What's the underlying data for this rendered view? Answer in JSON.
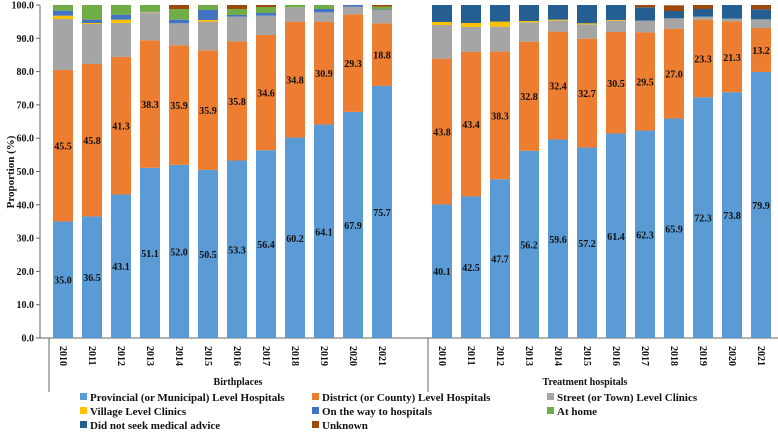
{
  "chart_data": {
    "type": "bar",
    "stacked": true,
    "ylabel": "Proportion (%)",
    "ylim": [
      0,
      100
    ],
    "yticks": [
      "0.0",
      "10.0",
      "20.0",
      "30.0",
      "40.0",
      "50.0",
      "60.0",
      "70.0",
      "80.0",
      "90.0",
      "100.0"
    ],
    "grid": false,
    "legend_position": "bottom",
    "categories": [
      "2010",
      "2011",
      "2012",
      "2013",
      "2014",
      "2015",
      "2016",
      "2017",
      "2018",
      "2019",
      "2020",
      "2021"
    ],
    "series_meta": [
      {
        "name": "Provincial (or Municipal) Level Hospitals",
        "color": "#5b9bd5"
      },
      {
        "name": "District (or County) Level Hospitals",
        "color": "#ed7d31"
      },
      {
        "name": "Street (or Town) Level Clinics",
        "color": "#a5a5a5"
      },
      {
        "name": "Village Level Clinics",
        "color": "#ffc000"
      },
      {
        "name": "On the way to hospitals",
        "color": "#4472c4"
      },
      {
        "name": "At home",
        "color": "#70ad47"
      },
      {
        "name": "Did not seek medical advice",
        "color": "#255e91"
      },
      {
        "name": "Unknown",
        "color": "#9e480e"
      }
    ],
    "groups": [
      {
        "label": "Birthplaces",
        "series": [
          {
            "name": "Provincial (or Municipal) Level Hospitals",
            "values": [
              35.0,
              36.5,
              43.1,
              51.1,
              52.0,
              50.5,
              53.3,
              56.4,
              60.2,
              64.1,
              67.9,
              75.7
            ]
          },
          {
            "name": "District (or County) Level Hospitals",
            "values": [
              45.5,
              45.8,
              41.3,
              38.3,
              35.9,
              35.9,
              35.8,
              34.6,
              34.8,
              30.9,
              29.3,
              18.8
            ]
          },
          {
            "name": "Street (or Town) Level Clinics",
            "values": [
              15.3,
              12.0,
              10.2,
              8.4,
              6.6,
              8.6,
              7.4,
              5.8,
              4.3,
              2.8,
              2.3,
              4.0
            ]
          },
          {
            "name": "Village Level Clinics",
            "values": [
              1.0,
              0.3,
              1.0,
              0.1,
              0.0,
              0.5,
              0.0,
              0.0,
              0.0,
              0.0,
              0.0,
              0.0
            ]
          },
          {
            "name": "On the way to hospitals",
            "values": [
              1.5,
              1.0,
              1.5,
              0.1,
              1.1,
              3.0,
              0.5,
              0.8,
              0.0,
              1.0,
              0.5,
              0.2
            ]
          },
          {
            "name": "At home",
            "values": [
              1.7,
              4.4,
              2.9,
              2.0,
              3.2,
              1.5,
              1.8,
              1.8,
              0.7,
              1.2,
              0.0,
              0.8
            ]
          },
          {
            "name": "Did not seek medical advice",
            "values": [
              0,
              0,
              0,
              0,
              0,
              0,
              0,
              0,
              0,
              0,
              0,
              0
            ]
          },
          {
            "name": "Unknown",
            "values": [
              0.0,
              0.0,
              0.0,
              0.0,
              1.2,
              0.0,
              1.2,
              0.6,
              0.0,
              0.0,
              0.0,
              0.5
            ]
          }
        ]
      },
      {
        "label": "Treatment hospitals",
        "series": [
          {
            "name": "Provincial (or Municipal) Level Hospitals",
            "values": [
              40.1,
              42.5,
              47.7,
              56.2,
              59.6,
              57.2,
              61.4,
              62.3,
              65.9,
              72.3,
              73.8,
              79.9
            ]
          },
          {
            "name": "District (or County) Level Hospitals",
            "values": [
              43.8,
              43.4,
              38.3,
              32.8,
              32.4,
              32.7,
              30.5,
              29.5,
              27.0,
              23.3,
              21.3,
              13.2
            ]
          },
          {
            "name": "Street (or Town) Level Clinics",
            "values": [
              10.1,
              7.5,
              7.5,
              5.8,
              3.3,
              4.3,
              3.4,
              3.5,
              3.1,
              0.9,
              0.8,
              2.6
            ]
          },
          {
            "name": "Village Level Clinics",
            "values": [
              0.9,
              1.2,
              1.5,
              0.4,
              0.3,
              0.3,
              0.2,
              0.0,
              0.0,
              0.0,
              0.0,
              0.0
            ]
          },
          {
            "name": "On the way to hospitals",
            "values": [
              0,
              0,
              0,
              0,
              0,
              0,
              0,
              0,
              0,
              0,
              0,
              0
            ]
          },
          {
            "name": "At home",
            "values": [
              0,
              0,
              0,
              0,
              0,
              0,
              0,
              0,
              0,
              0,
              0,
              0
            ]
          },
          {
            "name": "Did not seek medical advice",
            "values": [
              5.1,
              5.4,
              5.0,
              4.8,
              4.4,
              5.5,
              4.5,
              4.0,
              2.2,
              2.3,
              4.1,
              3.0
            ]
          },
          {
            "name": "Unknown",
            "values": [
              0.0,
              0.0,
              0.0,
              0.0,
              0.0,
              0.0,
              0.0,
              0.7,
              1.7,
              1.2,
              0.0,
              1.3
            ]
          }
        ]
      }
    ],
    "labeled_series": [
      "Provincial (or Municipal) Level Hospitals",
      "District (or County) Level Hospitals"
    ]
  }
}
